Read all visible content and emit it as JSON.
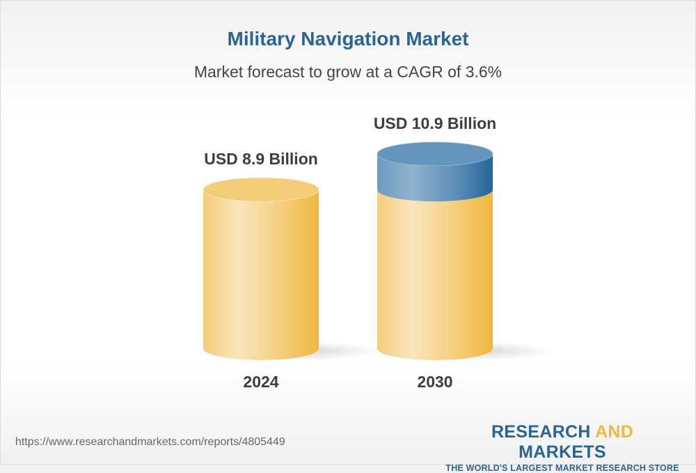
{
  "title": "Military Navigation Market",
  "subtitle": "Market forecast to grow at a CAGR of 3.6%",
  "chart_data": {
    "type": "bar",
    "style": "3d-cylinder",
    "categories": [
      "2024",
      "2030"
    ],
    "values": [
      8.9,
      10.9
    ],
    "data_labels": [
      "USD 8.9 Billion",
      "USD 10.9 Billion"
    ],
    "unit": "USD Billion",
    "cagr": "3.6%",
    "colors": {
      "base": "#f1c45f",
      "growth": "#4f86b5"
    }
  },
  "footer": {
    "url": "https://www.researchandmarkets.com/reports/4805449",
    "logo_part1": "RESEARCH ",
    "logo_part2": "AND",
    "logo_part3": " MARKETS",
    "tagline": "THE WORLD'S LARGEST MARKET RESEARCH STORE"
  }
}
